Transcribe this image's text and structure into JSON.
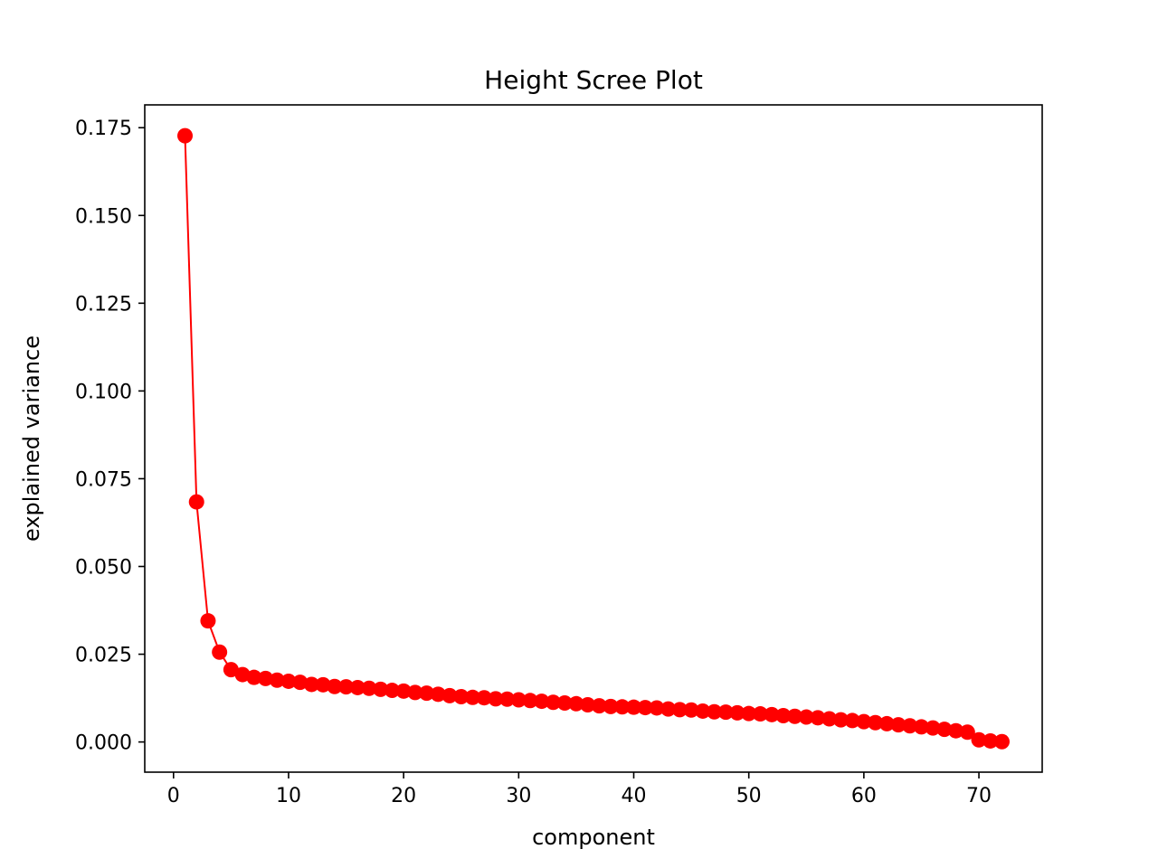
{
  "chart_data": {
    "type": "line",
    "title": "Height Scree Plot",
    "xlabel": "component",
    "ylabel": "explained variance",
    "xlim": [
      -2.5,
      75.5
    ],
    "ylim": [
      -0.0086,
      0.1815
    ],
    "x_ticks": [
      0,
      10,
      20,
      30,
      40,
      50,
      60,
      70
    ],
    "x_tick_labels": [
      "0",
      "10",
      "20",
      "30",
      "40",
      "50",
      "60",
      "70"
    ],
    "y_ticks": [
      0.0,
      0.025,
      0.05,
      0.075,
      0.1,
      0.125,
      0.15,
      0.175
    ],
    "y_tick_labels": [
      "0.000",
      "0.025",
      "0.050",
      "0.075",
      "0.100",
      "0.125",
      "0.150",
      "0.175"
    ],
    "grid": false,
    "color": "#ff0000",
    "series": [
      {
        "marker": "circle",
        "x": [
          1,
          2,
          3,
          4,
          5,
          6,
          7,
          8,
          9,
          10,
          11,
          12,
          13,
          14,
          15,
          16,
          17,
          18,
          19,
          20,
          21,
          22,
          23,
          24,
          25,
          26,
          27,
          28,
          29,
          30,
          31,
          32,
          33,
          34,
          35,
          36,
          37,
          38,
          39,
          40,
          41,
          42,
          43,
          44,
          45,
          46,
          47,
          48,
          49,
          50,
          51,
          52,
          53,
          54,
          55,
          56,
          57,
          58,
          59,
          60,
          61,
          62,
          63,
          64,
          65,
          66,
          67,
          68,
          69,
          70,
          71,
          72
        ],
        "y": [
          0.1727,
          0.0684,
          0.0345,
          0.0256,
          0.0206,
          0.0192,
          0.0184,
          0.0181,
          0.0176,
          0.0173,
          0.017,
          0.0164,
          0.0163,
          0.0158,
          0.0157,
          0.0155,
          0.0153,
          0.015,
          0.0147,
          0.0145,
          0.0141,
          0.0139,
          0.0136,
          0.0132,
          0.0129,
          0.0127,
          0.0126,
          0.0123,
          0.0122,
          0.012,
          0.0118,
          0.0116,
          0.0113,
          0.0111,
          0.0109,
          0.0106,
          0.0103,
          0.0101,
          0.01,
          0.0099,
          0.0098,
          0.0097,
          0.0094,
          0.0092,
          0.0091,
          0.0088,
          0.0086,
          0.0085,
          0.0083,
          0.0081,
          0.008,
          0.0078,
          0.0075,
          0.0073,
          0.0071,
          0.0069,
          0.0066,
          0.0063,
          0.0061,
          0.0058,
          0.0055,
          0.0052,
          0.0049,
          0.0046,
          0.0043,
          0.004,
          0.0036,
          0.0032,
          0.0028,
          0.0006,
          0.0003,
          0.0001
        ]
      }
    ]
  }
}
